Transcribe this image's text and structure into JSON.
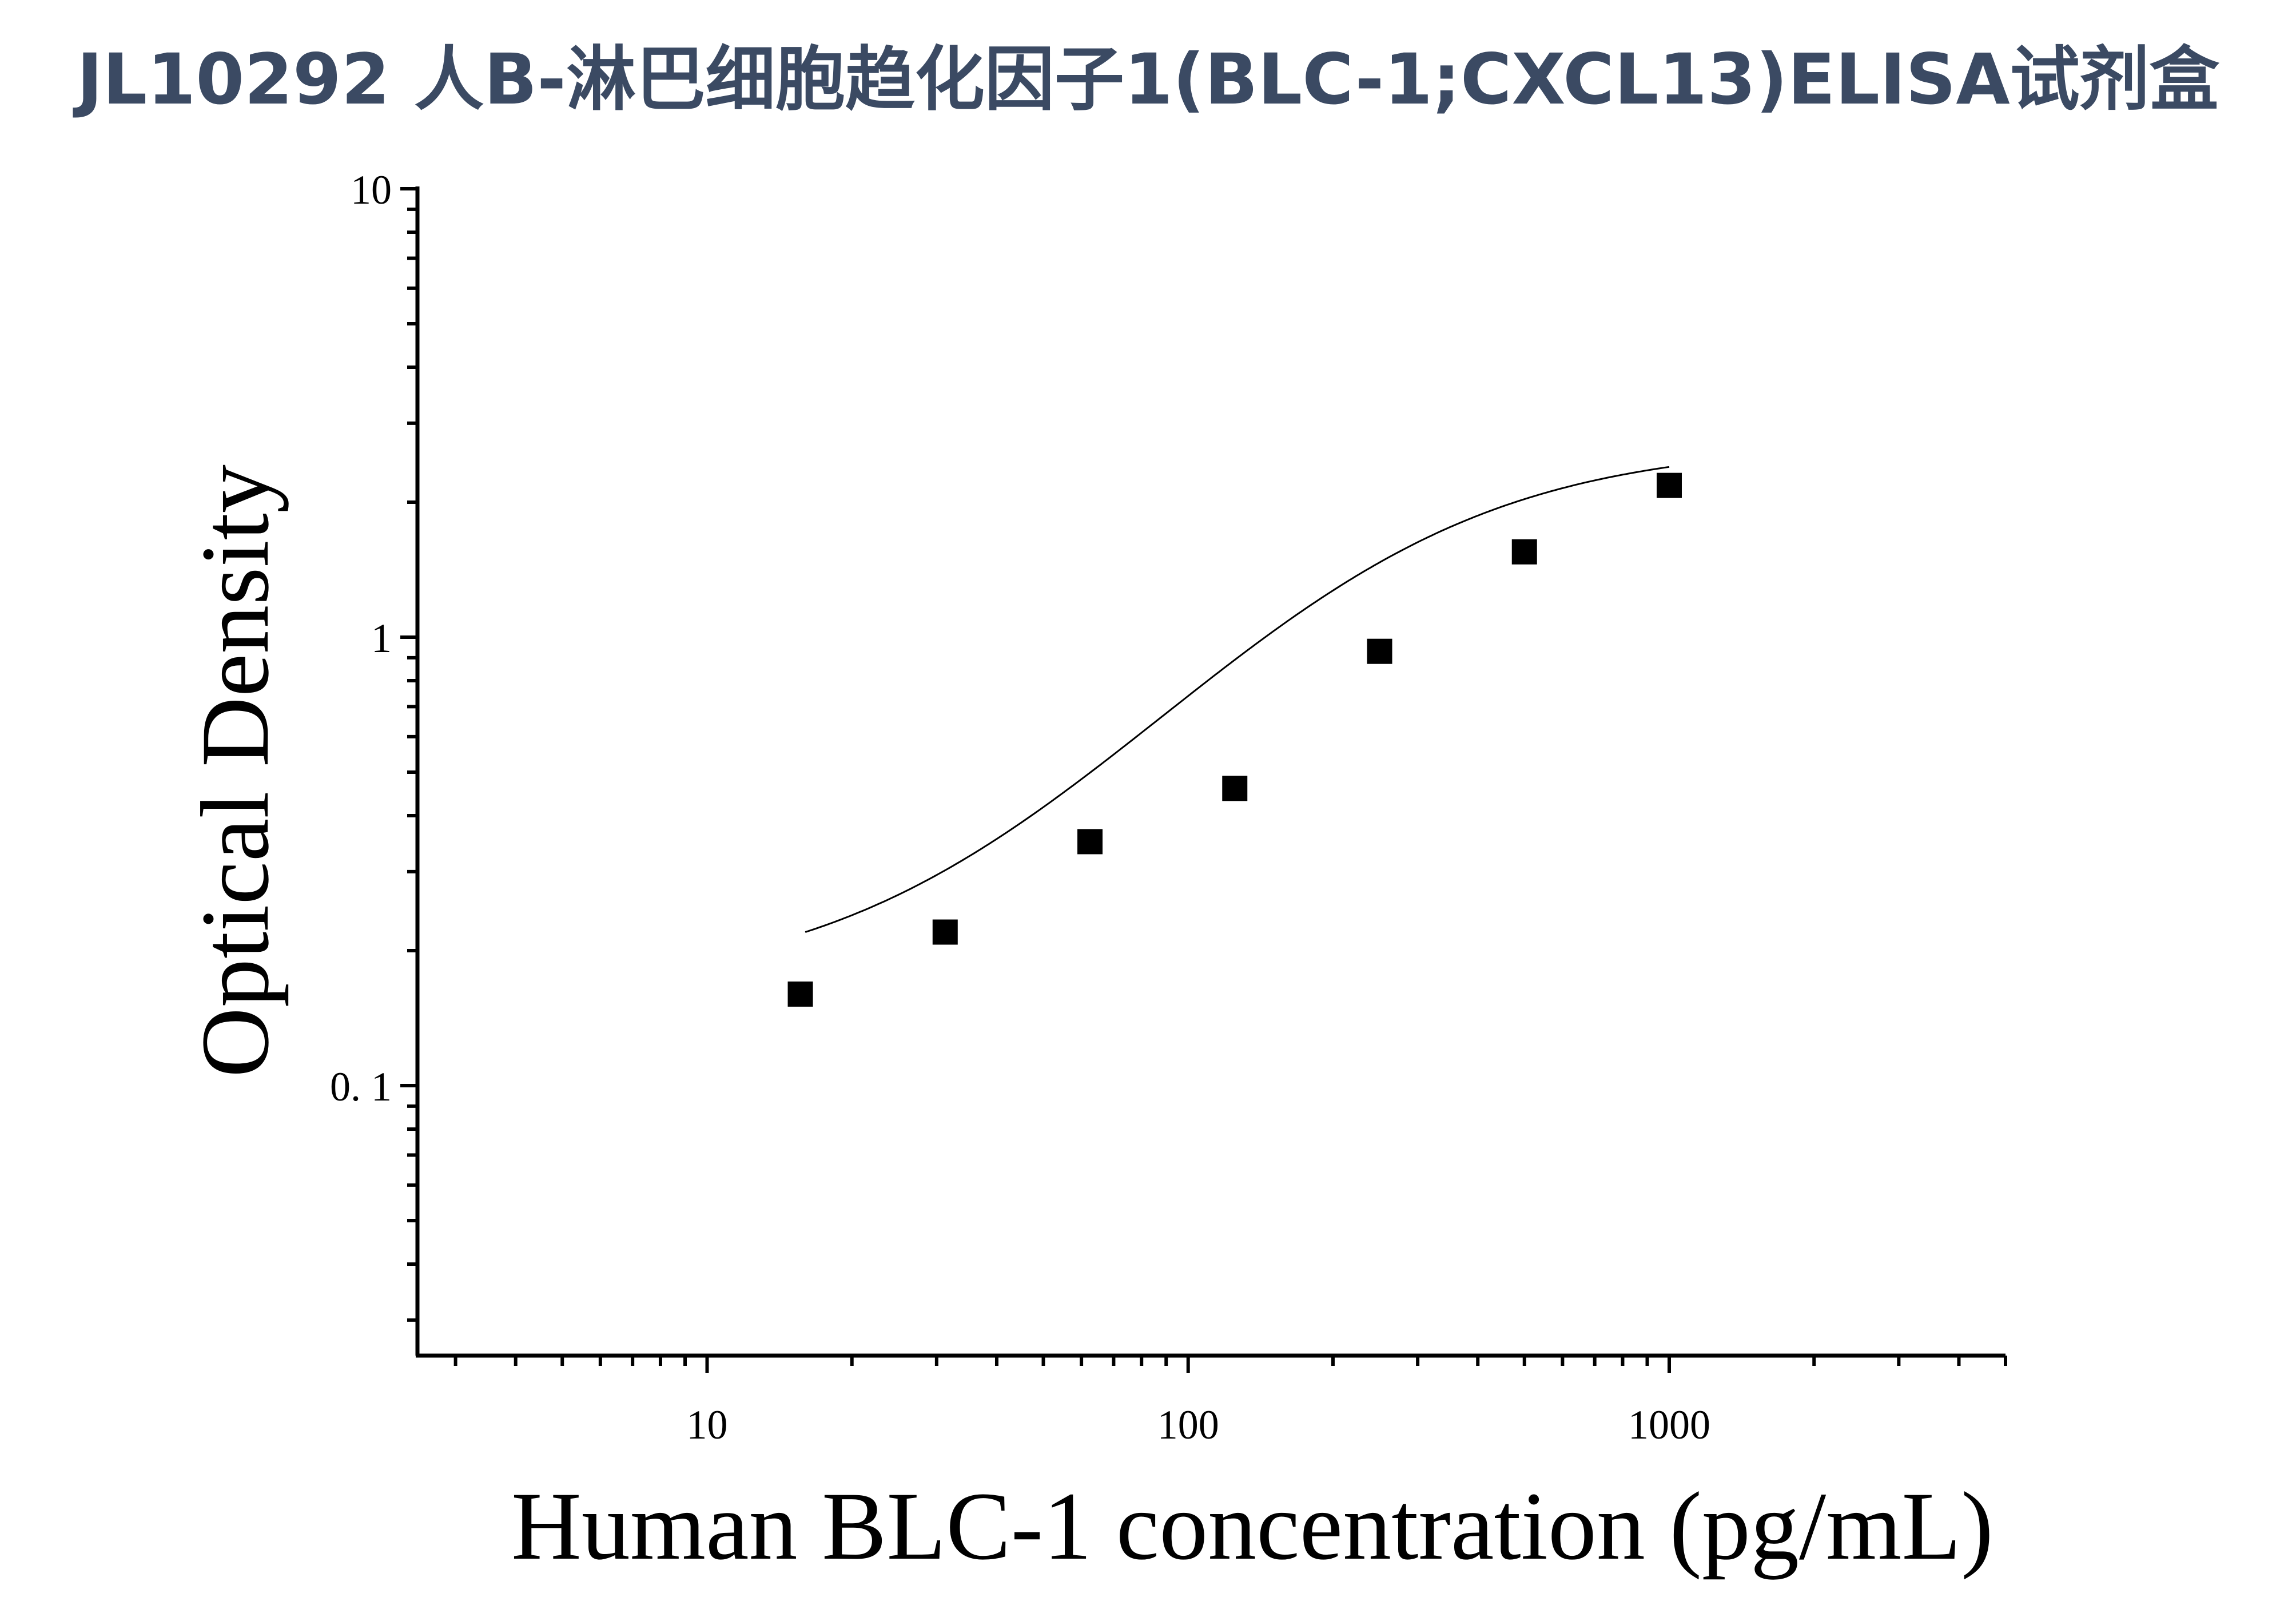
{
  "title": "JL10292 人B-淋巴细胞趋化因子1(BLC-1;CXCL13)ELISA试剂盒",
  "chart_data": {
    "type": "scatter",
    "title": "JL10292 人B-淋巴细胞趋化因子1(BLC-1;CXCL13)ELISA试剂盒",
    "xlabel": "Human BLC-1 concentration (pg/mL)",
    "ylabel": "Optical Density",
    "x_scale": "log",
    "y_scale": "log",
    "xlim": [
      2.5,
      5000
    ],
    "ylim": [
      0.025,
      10
    ],
    "x_ticks": [
      10,
      100,
      1000
    ],
    "x_tick_labels": [
      "10",
      "100",
      "1000"
    ],
    "y_ticks": [
      0.1,
      1,
      10
    ],
    "y_tick_labels": [
      "0. 1",
      "1",
      "10"
    ],
    "grid": false,
    "marker": "square",
    "marker_color": "#000000",
    "line_color": "#000000",
    "series": [
      {
        "x": [
          15.625,
          31.25,
          62.5,
          125,
          250,
          500,
          1000
        ],
        "y": [
          0.16,
          0.22,
          0.35,
          0.46,
          0.93,
          1.55,
          2.18
        ]
      }
    ],
    "fit_curve": {
      "type": "4PL",
      "bottom": 0.164,
      "top": 2.7,
      "ec50": 240,
      "hill": 1.4,
      "x_range": [
        16,
        1000
      ]
    }
  }
}
